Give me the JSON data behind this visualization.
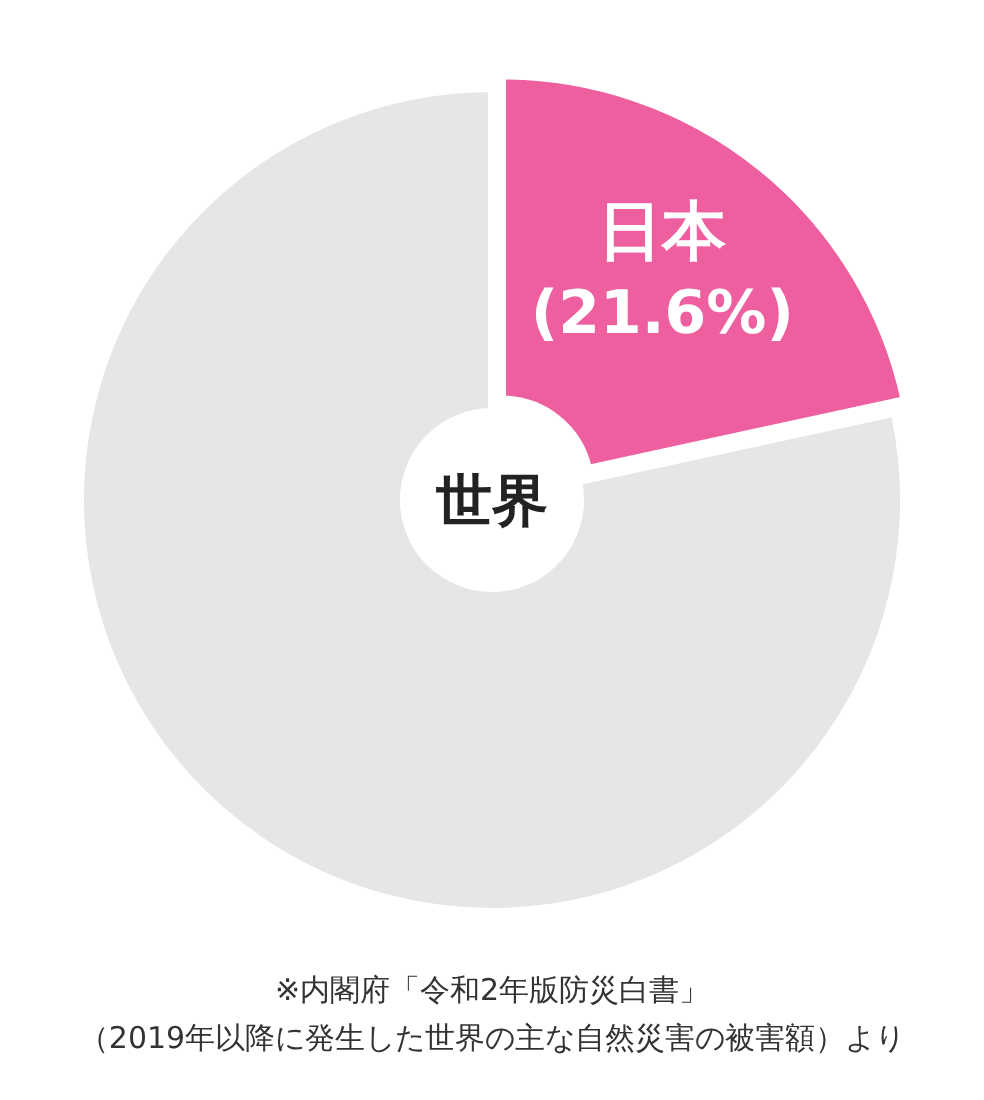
{
  "chart_data": {
    "type": "donut",
    "title": "世界",
    "categories": [
      "日本",
      null
    ],
    "values": [
      21.6,
      78.4
    ],
    "colors": [
      "#ee5fa0",
      "#e6e6e6"
    ],
    "value_labels": [
      "(21.6%)",
      null
    ],
    "annotations": [
      "※内閣府「令和2年版防災白書」",
      "（2019年以降に発生した世界の主な自然災害の被害額）より"
    ]
  }
}
